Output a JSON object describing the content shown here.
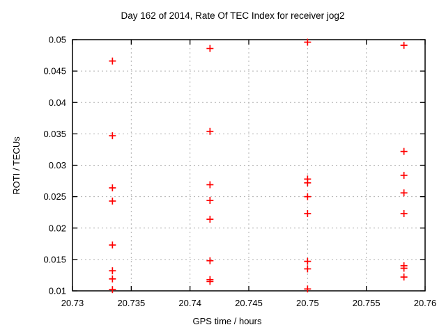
{
  "page": {
    "background": "#ffffff"
  },
  "chart_data": {
    "type": "scatter",
    "title": "Day 162 of 2014, Rate Of TEC Index for receiver jog2",
    "xlabel": "GPS time / hours",
    "ylabel": "ROTI / TECUs",
    "xlim": [
      20.73,
      20.76
    ],
    "ylim": [
      0.01,
      0.05
    ],
    "xticks": {
      "values": [
        20.73,
        20.735,
        20.74,
        20.745,
        20.75,
        20.755,
        20.76
      ],
      "labels": [
        "20.73",
        "20.735",
        "20.74",
        "20.745",
        "20.75",
        "20.755",
        "20.76"
      ]
    },
    "yticks": {
      "values": [
        0.01,
        0.015,
        0.02,
        0.025,
        0.03,
        0.035,
        0.04,
        0.045,
        0.05
      ],
      "labels": [
        "0.01",
        "0.015",
        "0.02",
        "0.025",
        "0.03",
        "0.035",
        "0.04",
        "0.045",
        "0.05"
      ]
    },
    "grid": true,
    "legend": "none",
    "marker": {
      "shape": "plus",
      "color": "#ff0000",
      "size": 10
    },
    "colors": {
      "frame": "#000000",
      "grid": "#b0b0b0",
      "text": "#000000",
      "marker": "#ff0000"
    },
    "series": [
      {
        "name": "ROTI",
        "points": [
          [
            20.7334,
            0.0466
          ],
          [
            20.7334,
            0.0347
          ],
          [
            20.7334,
            0.0264
          ],
          [
            20.7334,
            0.0243
          ],
          [
            20.7334,
            0.0173
          ],
          [
            20.7334,
            0.0132
          ],
          [
            20.7334,
            0.0119
          ],
          [
            20.7334,
            0.0102
          ],
          [
            20.7417,
            0.0486
          ],
          [
            20.7417,
            0.0354
          ],
          [
            20.7417,
            0.0269
          ],
          [
            20.7417,
            0.0244
          ],
          [
            20.7417,
            0.0214
          ],
          [
            20.7417,
            0.0148
          ],
          [
            20.7417,
            0.0118
          ],
          [
            20.7417,
            0.0115
          ],
          [
            20.75,
            0.0496
          ],
          [
            20.75,
            0.0278
          ],
          [
            20.75,
            0.0272
          ],
          [
            20.75,
            0.025
          ],
          [
            20.75,
            0.0223
          ],
          [
            20.75,
            0.0147
          ],
          [
            20.75,
            0.0135
          ],
          [
            20.75,
            0.0103
          ],
          [
            20.7582,
            0.0491
          ],
          [
            20.7582,
            0.0322
          ],
          [
            20.7582,
            0.0284
          ],
          [
            20.7582,
            0.0256
          ],
          [
            20.7582,
            0.0223
          ],
          [
            20.7582,
            0.014
          ],
          [
            20.7582,
            0.0136
          ],
          [
            20.7582,
            0.0122
          ]
        ]
      }
    ]
  }
}
